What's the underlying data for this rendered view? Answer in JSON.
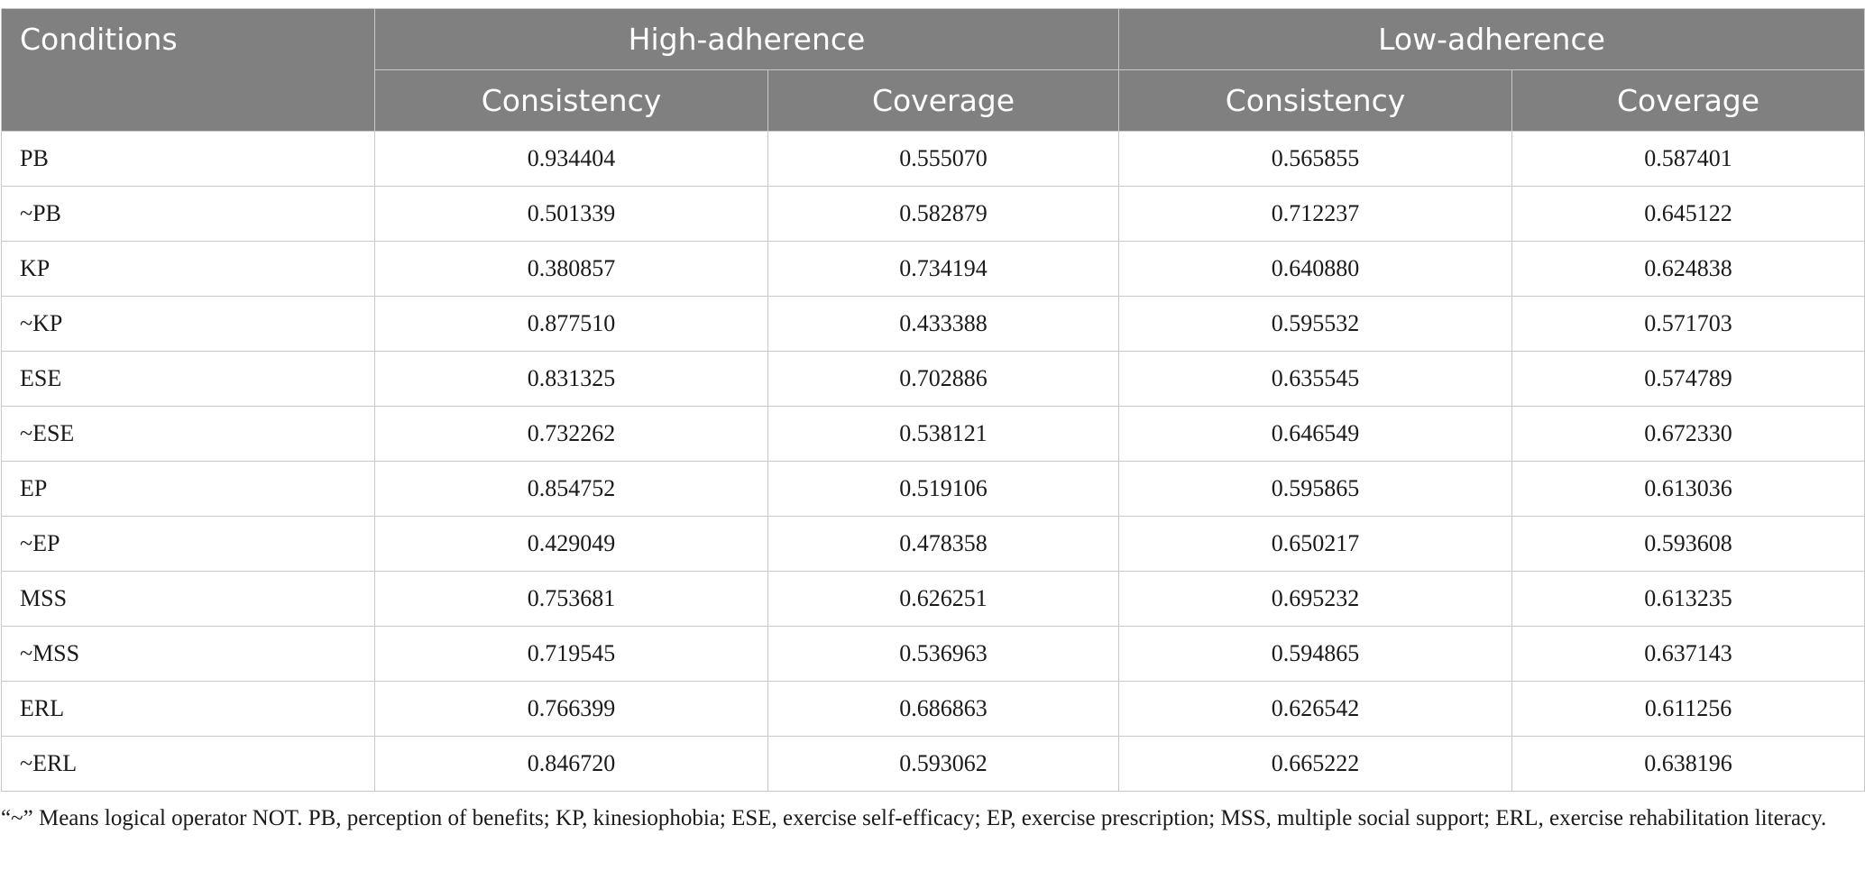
{
  "table": {
    "header": {
      "conditions": "Conditions",
      "high_group": "High-adherence",
      "low_group": "Low-adherence",
      "high_consistency": "Consistency",
      "high_coverage": "Coverage",
      "low_consistency": "Consistency",
      "low_coverage": "Coverage"
    },
    "rows": [
      [
        "PB",
        "0.934404",
        "0.555070",
        "0.565855",
        "0.587401"
      ],
      [
        "~PB",
        "0.501339",
        "0.582879",
        "0.712237",
        "0.645122"
      ],
      [
        "KP",
        "0.380857",
        "0.734194",
        "0.640880",
        "0.624838"
      ],
      [
        "~KP",
        "0.877510",
        "0.433388",
        "0.595532",
        "0.571703"
      ],
      [
        "ESE",
        "0.831325",
        "0.702886",
        "0.635545",
        "0.574789"
      ],
      [
        "~ESE",
        "0.732262",
        "0.538121",
        "0.646549",
        "0.672330"
      ],
      [
        "EP",
        "0.854752",
        "0.519106",
        "0.595865",
        "0.613036"
      ],
      [
        "~EP",
        "0.429049",
        "0.478358",
        "0.650217",
        "0.593608"
      ],
      [
        "MSS",
        "0.753681",
        "0.626251",
        "0.695232",
        "0.613235"
      ],
      [
        "~MSS",
        "0.719545",
        "0.536963",
        "0.594865",
        "0.637143"
      ],
      [
        "ERL",
        "0.766399",
        "0.686863",
        "0.626542",
        "0.611256"
      ],
      [
        "~ERL",
        "0.846720",
        "0.593062",
        "0.665222",
        "0.638196"
      ]
    ]
  },
  "footnote": "“~” Means logical operator NOT. PB, perception of benefits; KP, kinesiophobia; ESE, exercise self-efficacy; EP, exercise prescription; MSS, multiple social support; ERL, exercise rehabilitation literacy.",
  "colors": {
    "header_bg": "#808080",
    "header_text": "#ffffff",
    "border": "#c8c8c8"
  }
}
